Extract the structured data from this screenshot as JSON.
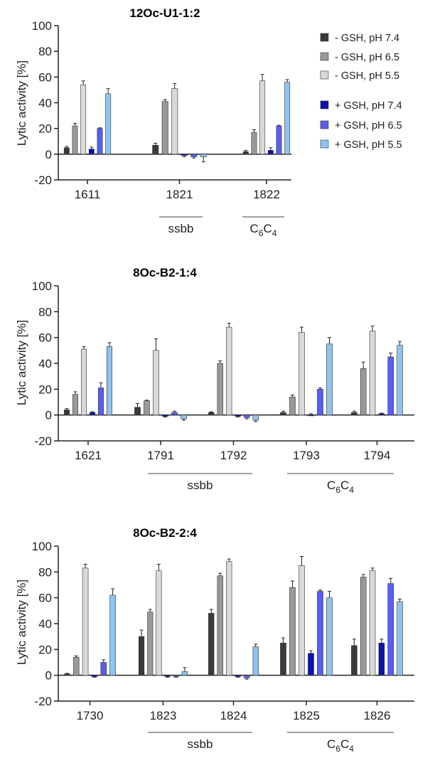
{
  "legend": [
    {
      "label": "- GSH, pH 7.4",
      "color": "#3a3a3a"
    },
    {
      "label": "- GSH, pH 6.5",
      "color": "#999999"
    },
    {
      "label": "- GSH, pH 5.5",
      "color": "#d9d9d9"
    },
    {
      "label": "+ GSH, pH 7.4",
      "color": "#0a12b0"
    },
    {
      "label": "+ GSH, pH 6.5",
      "color": "#5a5ef0"
    },
    {
      "label": "+ GSH, pH 5.5",
      "color": "#8ec4f2"
    }
  ],
  "chart_data": [
    {
      "type": "bar",
      "title": "12Oc-U1-1:2",
      "ylabel": "Lytic activity [%]",
      "ylim": [
        -20,
        100
      ],
      "yticks": [
        -20,
        0,
        20,
        40,
        60,
        80,
        100
      ],
      "categories": [
        "1611",
        "1821",
        "1822"
      ],
      "group_labels": [
        {
          "text": "ssbb",
          "sub": "",
          "categories": [
            "1821"
          ]
        },
        {
          "text": "C",
          "sub": "6",
          "text2": "C",
          "sub2": "4",
          "categories": [
            "1822"
          ]
        }
      ],
      "series": [
        {
          "name": "- GSH, pH 7.4",
          "values": [
            5,
            7,
            2
          ],
          "errors": [
            1,
            1.5,
            1
          ]
        },
        {
          "name": "- GSH, pH 6.5",
          "values": [
            22,
            41,
            17
          ],
          "errors": [
            2,
            1.5,
            2
          ]
        },
        {
          "name": "- GSH, pH 5.5",
          "values": [
            54,
            51,
            57
          ],
          "errors": [
            3,
            4,
            5
          ]
        },
        {
          "name": "+ GSH, pH 7.4",
          "values": [
            4,
            -1,
            3
          ],
          "errors": [
            1.5,
            1,
            2
          ]
        },
        {
          "name": "+ GSH, pH 6.5",
          "values": [
            20,
            -2,
            22
          ],
          "errors": [
            0.5,
            1,
            0.5
          ]
        },
        {
          "name": "+ GSH, pH 5.5",
          "values": [
            47,
            -2,
            56
          ],
          "errors": [
            4,
            4,
            2
          ]
        }
      ]
    },
    {
      "type": "bar",
      "title": "8Oc-B2-1:4",
      "ylabel": "Lytic activity [%]",
      "ylim": [
        -20,
        100
      ],
      "yticks": [
        -20,
        0,
        20,
        40,
        60,
        80,
        100
      ],
      "categories": [
        "1621",
        "1791",
        "1792",
        "1793",
        "1794"
      ],
      "group_labels": [
        {
          "text": "ssbb",
          "sub": "",
          "categories": [
            "1791",
            "1792"
          ]
        },
        {
          "text": "C",
          "sub": "6",
          "text2": "C",
          "sub2": "4",
          "categories": [
            "1793",
            "1794"
          ]
        }
      ],
      "series": [
        {
          "name": "- GSH, pH 7.4",
          "values": [
            4,
            6,
            2,
            2,
            2
          ],
          "errors": [
            1,
            3,
            0.5,
            1,
            1
          ]
        },
        {
          "name": "- GSH, pH 6.5",
          "values": [
            16,
            11,
            40,
            14,
            36
          ],
          "errors": [
            2,
            0.5,
            2,
            1.5,
            5
          ]
        },
        {
          "name": "- GSH, pH 5.5",
          "values": [
            51,
            50,
            68,
            64,
            65
          ],
          "errors": [
            2,
            9,
            3,
            4,
            4
          ]
        },
        {
          "name": "+ GSH, pH 7.4",
          "values": [
            2,
            -1,
            -1,
            0,
            1
          ],
          "errors": [
            0.5,
            0.5,
            0.5,
            1,
            0.5
          ]
        },
        {
          "name": "+ GSH, pH 6.5",
          "values": [
            21,
            2,
            -2,
            20,
            45
          ],
          "errors": [
            4,
            1,
            1,
            1,
            3
          ]
        },
        {
          "name": "+ GSH, pH 5.5",
          "values": [
            53,
            -3,
            -4,
            55,
            54
          ],
          "errors": [
            3,
            1,
            1,
            5,
            3
          ]
        }
      ]
    },
    {
      "type": "bar",
      "title": "8Oc-B2-2:4",
      "ylabel": "Lytic activity [%]",
      "ylim": [
        -20,
        100
      ],
      "yticks": [
        -20,
        0,
        20,
        40,
        60,
        80,
        100
      ],
      "categories": [
        "1730",
        "1823",
        "1824",
        "1825",
        "1826"
      ],
      "group_labels": [
        {
          "text": "ssbb",
          "sub": "",
          "categories": [
            "1823",
            "1824"
          ]
        },
        {
          "text": "C",
          "sub": "6",
          "text2": "C",
          "sub2": "4",
          "categories": [
            "1825",
            "1826"
          ]
        }
      ],
      "series": [
        {
          "name": "- GSH, pH 7.4",
          "values": [
            1,
            30,
            48,
            25,
            23
          ],
          "errors": [
            0.5,
            5,
            3,
            4,
            5
          ]
        },
        {
          "name": "- GSH, pH 6.5",
          "values": [
            14,
            49,
            77,
            68,
            76
          ],
          "errors": [
            1,
            2,
            2,
            5,
            2
          ]
        },
        {
          "name": "- GSH, pH 5.5",
          "values": [
            83,
            81,
            88,
            85,
            81
          ],
          "errors": [
            3,
            5,
            2,
            7,
            2
          ]
        },
        {
          "name": "+ GSH, pH 7.4",
          "values": [
            -1,
            -1,
            -1,
            17,
            25
          ],
          "errors": [
            0.5,
            0.5,
            0.5,
            2,
            3
          ]
        },
        {
          "name": "+ GSH, pH 6.5",
          "values": [
            10,
            -1,
            -2,
            65,
            71
          ],
          "errors": [
            2,
            0.5,
            1,
            1,
            4
          ]
        },
        {
          "name": "+ GSH, pH 5.5",
          "values": [
            62,
            3,
            22,
            60,
            57
          ],
          "errors": [
            5,
            3,
            2,
            5,
            2
          ]
        }
      ]
    }
  ]
}
